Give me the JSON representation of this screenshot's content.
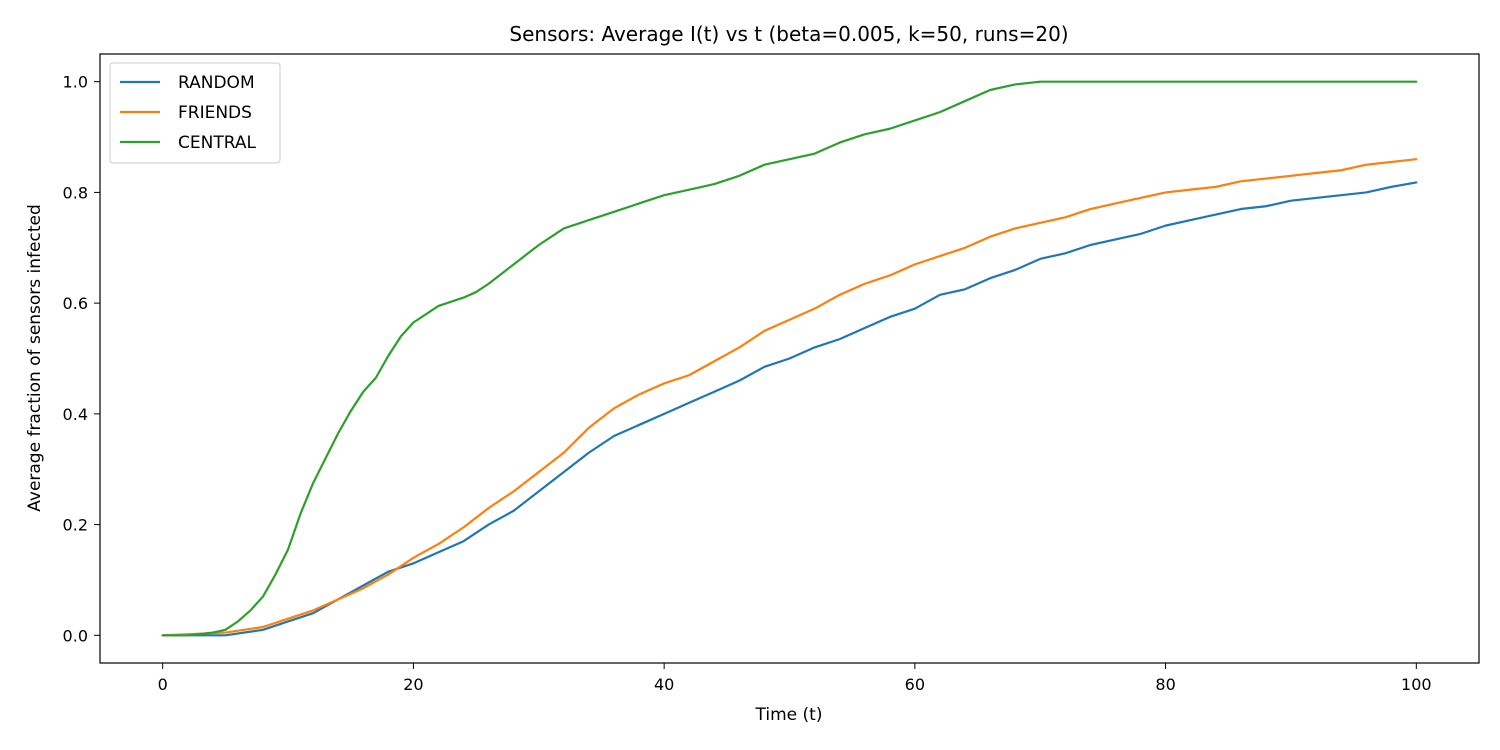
{
  "chart_data": {
    "type": "line",
    "title": "Sensors: Average I(t) vs t (beta=0.005, k=50, runs=20)",
    "xlabel": "Time (t)",
    "ylabel": "Average fraction of sensors infected",
    "xlim": [
      -5,
      105
    ],
    "ylim": [
      -0.05,
      1.05
    ],
    "xticks": [
      0,
      20,
      40,
      60,
      80,
      100
    ],
    "xtick_labels": [
      "0",
      "20",
      "40",
      "60",
      "80",
      "100"
    ],
    "yticks": [
      0.0,
      0.2,
      0.4,
      0.6,
      0.8,
      1.0
    ],
    "ytick_labels": [
      "0.0",
      "0.2",
      "0.4",
      "0.6",
      "0.8",
      "1.0"
    ],
    "grid": false,
    "legend_position": "top-left",
    "series": [
      {
        "name": "RANDOM",
        "color": "#1f77b4",
        "x": [
          0,
          5,
          8,
          10,
          12,
          14,
          16,
          18,
          20,
          22,
          24,
          26,
          28,
          30,
          32,
          34,
          36,
          38,
          40,
          42,
          44,
          46,
          48,
          50,
          52,
          54,
          56,
          58,
          60,
          62,
          64,
          66,
          68,
          70,
          72,
          74,
          76,
          78,
          80,
          82,
          84,
          86,
          88,
          90,
          92,
          94,
          96,
          98,
          100
        ],
        "y": [
          0.0,
          0.0,
          0.01,
          0.025,
          0.04,
          0.065,
          0.09,
          0.115,
          0.13,
          0.15,
          0.17,
          0.2,
          0.225,
          0.26,
          0.295,
          0.33,
          0.36,
          0.38,
          0.4,
          0.42,
          0.44,
          0.46,
          0.485,
          0.5,
          0.52,
          0.535,
          0.555,
          0.575,
          0.59,
          0.615,
          0.625,
          0.645,
          0.66,
          0.68,
          0.69,
          0.705,
          0.715,
          0.725,
          0.74,
          0.75,
          0.76,
          0.77,
          0.775,
          0.785,
          0.79,
          0.795,
          0.8,
          0.81,
          0.818
        ]
      },
      {
        "name": "FRIENDS",
        "color": "#ff7f0e",
        "x": [
          0,
          5,
          8,
          10,
          12,
          14,
          16,
          18,
          20,
          22,
          24,
          26,
          28,
          30,
          32,
          34,
          36,
          38,
          40,
          42,
          44,
          46,
          48,
          50,
          52,
          54,
          56,
          58,
          60,
          62,
          64,
          66,
          68,
          70,
          72,
          74,
          76,
          78,
          80,
          82,
          84,
          86,
          88,
          90,
          92,
          94,
          96,
          98,
          100
        ],
        "y": [
          0.0,
          0.005,
          0.015,
          0.03,
          0.045,
          0.065,
          0.085,
          0.11,
          0.14,
          0.165,
          0.195,
          0.23,
          0.26,
          0.295,
          0.33,
          0.375,
          0.41,
          0.435,
          0.455,
          0.47,
          0.495,
          0.52,
          0.55,
          0.57,
          0.59,
          0.615,
          0.635,
          0.65,
          0.67,
          0.685,
          0.7,
          0.72,
          0.735,
          0.745,
          0.755,
          0.77,
          0.78,
          0.79,
          0.8,
          0.805,
          0.81,
          0.82,
          0.825,
          0.83,
          0.835,
          0.84,
          0.85,
          0.855,
          0.86
        ]
      },
      {
        "name": "CENTRAL",
        "color": "#2ca02c",
        "x": [
          0,
          2,
          4,
          5,
          6,
          7,
          8,
          9,
          10,
          11,
          12,
          13,
          14,
          15,
          16,
          17,
          18,
          19,
          20,
          22,
          24,
          25,
          26,
          28,
          30,
          32,
          34,
          36,
          38,
          40,
          42,
          44,
          46,
          48,
          50,
          52,
          54,
          56,
          58,
          60,
          62,
          64,
          66,
          68,
          70,
          75,
          80,
          85,
          90,
          95,
          100
        ],
        "y": [
          0.0,
          0.0,
          0.005,
          0.01,
          0.025,
          0.045,
          0.07,
          0.11,
          0.155,
          0.22,
          0.275,
          0.32,
          0.365,
          0.405,
          0.44,
          0.465,
          0.505,
          0.54,
          0.565,
          0.595,
          0.61,
          0.62,
          0.635,
          0.67,
          0.705,
          0.735,
          0.75,
          0.765,
          0.78,
          0.795,
          0.805,
          0.815,
          0.83,
          0.85,
          0.86,
          0.87,
          0.89,
          0.905,
          0.915,
          0.93,
          0.945,
          0.965,
          0.985,
          0.995,
          1.0,
          1.0,
          1.0,
          1.0,
          1.0,
          1.0,
          1.0
        ]
      }
    ]
  }
}
